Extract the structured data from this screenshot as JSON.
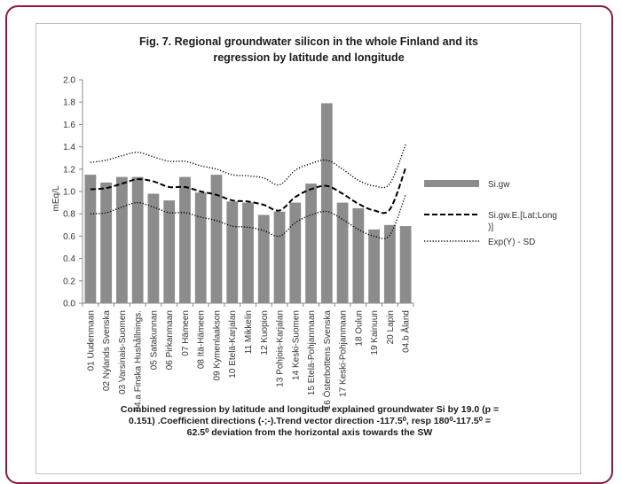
{
  "chart_data": {
    "type": "bar",
    "title": "Fig. 7. Regional groundwater silicon in the whole Finland and its regression by latitude and longitude",
    "ylabel": "mEq/L",
    "ylim": [
      0,
      2.0
    ],
    "yticks": [
      "0.0",
      "0.2",
      "0.4",
      "0.6",
      "0.8",
      "1.0",
      "1.2",
      "1.4",
      "1.6",
      "1.8",
      "2.0"
    ],
    "categories": [
      "01 Uudenmaan",
      "02 Nylands Svenska",
      "03 Varsinais-Suomen",
      "04.a Finska Hushållnings.",
      "05 Satakunnan",
      "06 Pirkanmaan",
      "07 Hämeen",
      "08 Itä-Hämeen",
      "09 Kymenlaakson",
      "10 Etelä-Karjalan",
      "11 Mikkelin",
      "12 Kuopion",
      "13 Pohjois-Karjalan",
      "14 Keski-Suomen",
      "15 Etelä-Pohjanmaan",
      "16 Österbottens Svenska",
      "17 Keski-Pohjanmaan",
      "18 Oulun",
      "19 Kainuun",
      "20 Lapin",
      "04.b Åland"
    ],
    "series": [
      {
        "name": "Si.gw",
        "type": "bar",
        "color": "#8c8c8c",
        "values": [
          1.15,
          1.08,
          1.13,
          1.13,
          0.98,
          0.92,
          1.13,
          0.99,
          1.15,
          0.91,
          0.9,
          0.79,
          0.82,
          0.9,
          1.07,
          1.79,
          0.9,
          0.85,
          0.66,
          0.7,
          0.69
        ]
      },
      {
        "name": "Si.gw.E.[Lat;Long)]",
        "type": "line",
        "style": "dashed",
        "color": "#000000",
        "values": [
          1.02,
          1.03,
          1.07,
          1.11,
          1.09,
          1.04,
          1.04,
          1.0,
          0.97,
          0.92,
          0.91,
          0.88,
          0.83,
          0.95,
          1.02,
          1.05,
          0.98,
          0.89,
          0.83,
          0.84,
          1.21
        ]
      },
      {
        "name": "Exp(Y) - SD",
        "type": "line",
        "style": "dotted",
        "color": "#000000",
        "values": [
          1.26,
          1.28,
          1.32,
          1.35,
          1.31,
          1.27,
          1.27,
          1.23,
          1.2,
          1.15,
          1.14,
          1.12,
          1.06,
          1.19,
          1.25,
          1.28,
          1.2,
          1.1,
          1.05,
          1.07,
          1.42
        ]
      },
      {
        "name": "",
        "type": "line",
        "style": "dotted",
        "color": "#000000",
        "values": [
          0.8,
          0.81,
          0.86,
          0.9,
          0.86,
          0.81,
          0.81,
          0.77,
          0.74,
          0.69,
          0.68,
          0.65,
          0.6,
          0.72,
          0.79,
          0.82,
          0.75,
          0.66,
          0.6,
          0.61,
          0.97
        ]
      }
    ],
    "legend": {
      "position": "right",
      "entries": [
        "Si.gw",
        "Si.gw.E.[Lat;Long)]",
        "Exp(Y) - SD"
      ]
    },
    "grid": false,
    "footnote": [
      "Combined regression by latitude  and  longitude explained groundwater Si by 19.0 (p =",
      "0.151) .Coefficient directions (-;-).Trend vector direction -117.5⁰, resp 180⁰-117.5⁰ =",
      "62.5⁰ deviation from the horizontal axis towards the SW"
    ]
  }
}
